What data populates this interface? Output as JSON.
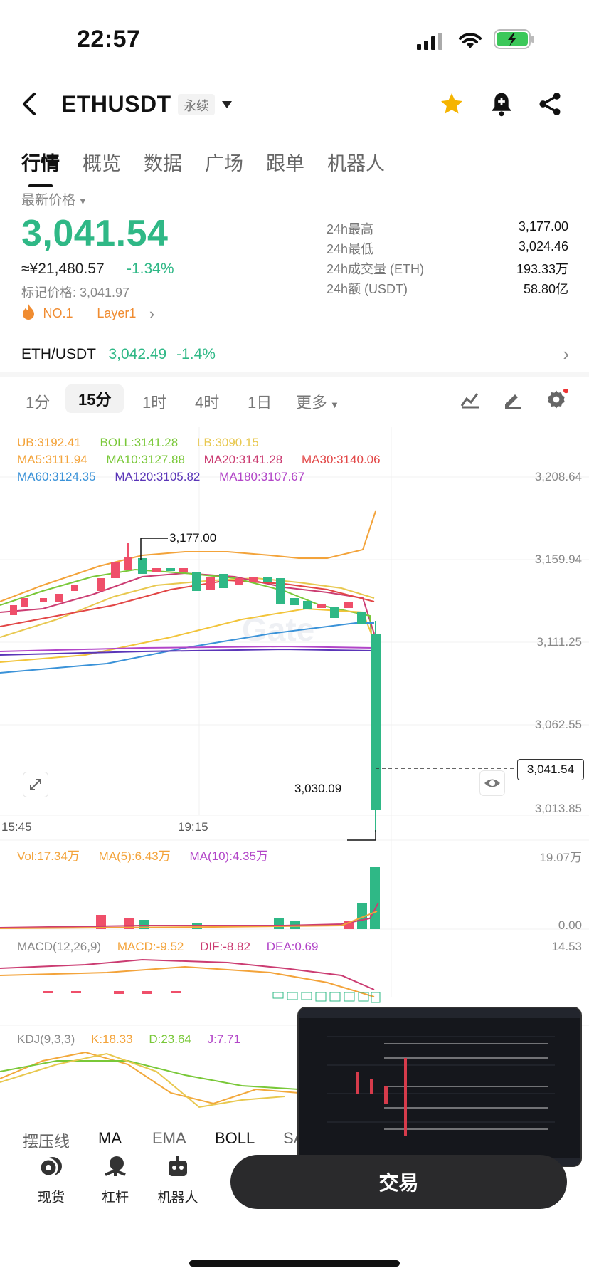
{
  "status": {
    "time": "22:57"
  },
  "nav": {
    "title": "ETHUSDT",
    "contract_type": "永续"
  },
  "tabs": [
    "行情",
    "概览",
    "数据",
    "广场",
    "跟单",
    "机器人"
  ],
  "price": {
    "latest_label": "最新价格",
    "last": "3,041.54",
    "cny": "≈¥21,480.57",
    "change": "-1.34%",
    "mark": "标记价格: 3,041.97",
    "rank": "NO.1",
    "sector": "Layer1"
  },
  "stats": [
    {
      "label": "24h最高",
      "value": "3,177.00"
    },
    {
      "label": "24h最低",
      "value": "3,024.46"
    },
    {
      "label": "24h成交量 (ETH)",
      "value": "193.33万"
    },
    {
      "label": "24h额 (USDT)",
      "value": "58.80亿"
    }
  ],
  "spot": {
    "pair": "ETH/USDT",
    "price": "3,042.49",
    "change": "-1.4%"
  },
  "timeframes": [
    "1分",
    "15分",
    "1时",
    "4时",
    "1日",
    "更多"
  ],
  "indicators": {
    "boll": [
      "UB:3192.41",
      "BOLL:3141.28",
      "LB:3090.15"
    ],
    "ma_a": [
      "MA5:3111.94",
      "MA10:3127.88",
      "MA20:3141.28",
      "MA30:3140.06"
    ],
    "ma_b": [
      "MA60:3124.35",
      "MA120:3105.82",
      "MA180:3107.67"
    ],
    "vol": [
      "Vol:17.34万",
      "MA(5):6.43万",
      "MA(10):4.35万"
    ],
    "macd": [
      "MACD(12,26,9)",
      "MACD:-9.52",
      "DIF:-8.82",
      "DEA:0.69"
    ],
    "kdj": [
      "KDJ(9,3,3)",
      "K:18.33",
      "D:23.64",
      "J:7.71"
    ]
  },
  "axis": {
    "price": [
      "3,208.64",
      "3,159.94",
      "3,111.25",
      "3,062.55",
      "3,013.85"
    ],
    "time": [
      "15:45",
      "19:15"
    ],
    "vol": [
      "19.07万",
      "0.00"
    ],
    "macd": [
      "14.53"
    ],
    "last_tag": "3,041.54",
    "high_marker": "3,177.00",
    "low_marker": "3,030.09"
  },
  "bottom_tabs": [
    "摆压线",
    "MA",
    "EMA",
    "BOLL",
    "SAR"
  ],
  "dock": {
    "items": [
      "现货",
      "杠杆",
      "机器人"
    ],
    "trade": "交易"
  },
  "colors": {
    "up": "#ef4f6a",
    "down": "#2fb886",
    "accent": "#f5b400"
  }
}
